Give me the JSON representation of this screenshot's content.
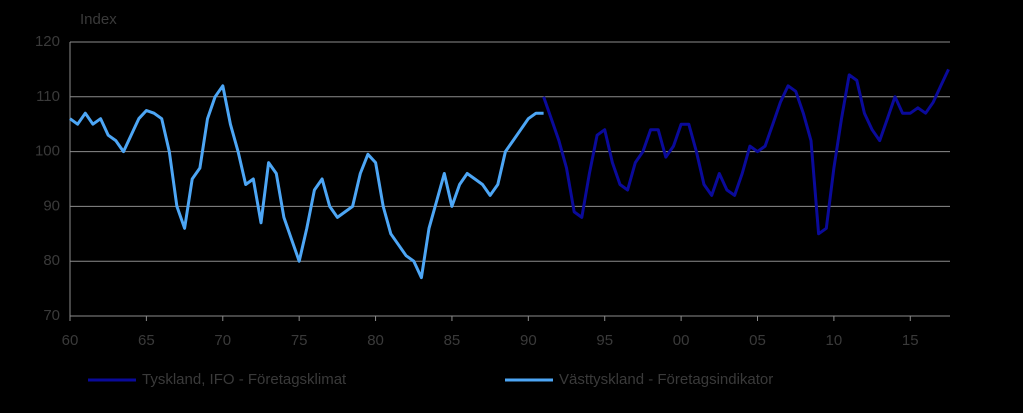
{
  "chart_data": {
    "type": "line",
    "y_label": "Index",
    "x": [
      1960,
      1960.5,
      1961,
      1961.5,
      1962,
      1962.5,
      1963,
      1963.5,
      1964,
      1964.5,
      1965,
      1965.5,
      1966,
      1966.5,
      1967,
      1967.5,
      1968,
      1968.5,
      1969,
      1969.5,
      1970,
      1970.5,
      1971,
      1971.5,
      1972,
      1972.5,
      1973,
      1973.5,
      1974,
      1974.5,
      1975,
      1975.5,
      1976,
      1976.5,
      1977,
      1977.5,
      1978,
      1978.5,
      1979,
      1979.5,
      1980,
      1980.5,
      1981,
      1981.5,
      1982,
      1982.5,
      1983,
      1983.5,
      1984,
      1984.5,
      1985,
      1985.5,
      1986,
      1986.5,
      1987,
      1987.5,
      1988,
      1988.5,
      1989,
      1989.5,
      1990,
      1990.5,
      1991,
      1991.5,
      1992,
      1992.5,
      1993,
      1993.5,
      1994,
      1994.5,
      1995,
      1995.5,
      1996,
      1996.5,
      1997,
      1997.5,
      1998,
      1998.5,
      1999,
      1999.5,
      2000,
      2000.5,
      2001,
      2001.5,
      2002,
      2002.5,
      2003,
      2003.5,
      2004,
      2004.5,
      2005,
      2005.5,
      2006,
      2006.5,
      2007,
      2007.5,
      2008,
      2008.5,
      2009,
      2009.5,
      2010,
      2010.5,
      2011,
      2011.5,
      2012,
      2012.5,
      2013,
      2013.5,
      2014,
      2014.5,
      2015,
      2015.5,
      2016,
      2016.5,
      2017,
      2017.5
    ],
    "series": [
      {
        "name": "Tyskland, IFO - Företagsklimat",
        "color": "#0a0a9a",
        "values": [
          null,
          null,
          null,
          null,
          null,
          null,
          null,
          null,
          null,
          null,
          null,
          null,
          null,
          null,
          null,
          null,
          null,
          null,
          null,
          null,
          null,
          null,
          null,
          null,
          null,
          null,
          null,
          null,
          null,
          null,
          null,
          null,
          null,
          null,
          null,
          null,
          null,
          null,
          null,
          null,
          null,
          null,
          null,
          null,
          null,
          null,
          null,
          null,
          null,
          null,
          null,
          null,
          null,
          null,
          null,
          null,
          null,
          null,
          null,
          null,
          null,
          null,
          110,
          106,
          102,
          97,
          89,
          88,
          96,
          103,
          104,
          98,
          94,
          93,
          98,
          100,
          104,
          104,
          99,
          101,
          105,
          105,
          100,
          94,
          92,
          96,
          93,
          92,
          96,
          101,
          100,
          101,
          105,
          109,
          112,
          111,
          107,
          102,
          85,
          86,
          97,
          106,
          114,
          113,
          107,
          104,
          102,
          106,
          110,
          107,
          107,
          108,
          107,
          109,
          112,
          115
        ]
      },
      {
        "name": "Västtyskland - Företagsindikator",
        "color": "#4da6f5",
        "values": [
          106,
          105,
          107,
          105,
          106,
          103,
          102,
          100,
          103,
          106,
          107.5,
          107,
          106,
          100,
          90,
          86,
          95,
          97,
          106,
          110,
          112,
          105,
          100,
          94,
          95,
          87,
          98,
          96,
          88,
          84,
          80,
          86,
          93,
          95,
          90,
          88,
          89,
          90,
          96,
          99.5,
          98,
          90,
          85,
          83,
          81,
          80,
          77,
          86,
          91,
          96,
          90,
          94,
          96,
          95,
          94,
          92,
          94,
          100,
          102,
          104,
          106,
          107,
          107,
          null,
          null,
          null,
          null,
          null,
          null,
          null,
          null,
          null,
          null,
          null,
          null,
          null,
          null,
          null,
          null,
          null,
          null,
          null,
          null,
          null,
          null,
          null,
          null,
          null,
          null,
          null,
          null,
          null,
          null,
          null,
          null,
          null,
          null,
          null,
          null,
          null,
          null,
          null,
          null,
          null,
          null,
          null,
          null,
          null,
          null,
          null,
          null,
          null,
          null,
          null,
          null,
          null
        ]
      }
    ],
    "xlim": [
      1960,
      2017.6
    ],
    "xticks": [
      {
        "value": 1960,
        "label": "60"
      },
      {
        "value": 1965,
        "label": "65"
      },
      {
        "value": 1970,
        "label": "70"
      },
      {
        "value": 1975,
        "label": "75"
      },
      {
        "value": 1980,
        "label": "80"
      },
      {
        "value": 1985,
        "label": "85"
      },
      {
        "value": 1990,
        "label": "90"
      },
      {
        "value": 1995,
        "label": "95"
      },
      {
        "value": 2000,
        "label": "00"
      },
      {
        "value": 2005,
        "label": "05"
      },
      {
        "value": 2010,
        "label": "10"
      },
      {
        "value": 2015,
        "label": "15"
      }
    ],
    "ylim": [
      70,
      120
    ],
    "yticks": [
      70,
      80,
      90,
      100,
      110,
      120
    ],
    "grid": true
  }
}
